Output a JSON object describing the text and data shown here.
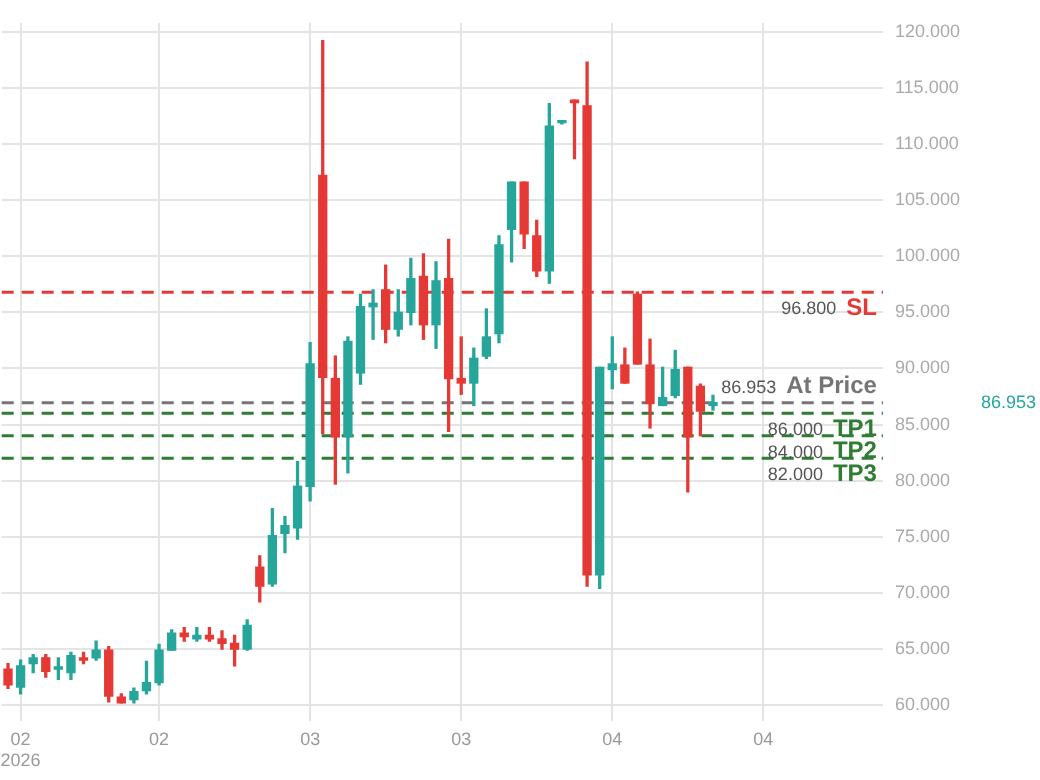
{
  "chart_data": {
    "type": "candlestick",
    "categories": [
      null,
      "02\n2026",
      null,
      null,
      null,
      null,
      null,
      null,
      null,
      null,
      null,
      null,
      "02",
      null,
      null,
      null,
      null,
      null,
      null,
      null,
      null,
      null,
      null,
      null,
      "03",
      null,
      null,
      null,
      null,
      null,
      null,
      null,
      null,
      null,
      null,
      null,
      "03",
      null,
      null,
      null,
      null,
      null,
      null,
      null,
      null,
      null,
      null,
      null,
      "04",
      null,
      null,
      null,
      null,
      null,
      null,
      null,
      null,
      null,
      null,
      null,
      "04",
      null,
      null,
      null,
      null,
      null,
      null,
      null,
      null,
      null
    ],
    "ohlc": [
      [
        63.2,
        63.7,
        61.5,
        61.8
      ],
      [
        61.6,
        64.0,
        61.0,
        63.5
      ],
      [
        63.7,
        64.5,
        62.9,
        64.2
      ],
      [
        64.2,
        64.5,
        62.5,
        63.0
      ],
      [
        63.2,
        64.2,
        62.3,
        63.4
      ],
      [
        62.9,
        64.7,
        62.3,
        64.4
      ],
      [
        64.2,
        64.7,
        63.7,
        64.0
      ],
      [
        64.2,
        65.7,
        64.0,
        64.9
      ],
      [
        64.9,
        65.2,
        60.3,
        60.8
      ],
      [
        60.7,
        61.0,
        60.2,
        60.2
      ],
      [
        60.5,
        61.5,
        60.2,
        61.2
      ],
      [
        61.3,
        63.9,
        61.0,
        62.0
      ],
      [
        62.0,
        65.4,
        61.8,
        64.9
      ],
      [
        64.9,
        66.7,
        64.9,
        66.4
      ],
      [
        66.4,
        66.9,
        65.7,
        66.1
      ],
      [
        65.9,
        66.9,
        65.7,
        66.2
      ],
      [
        66.2,
        66.9,
        65.7,
        65.9
      ],
      [
        65.9,
        66.6,
        65.0,
        65.5
      ],
      [
        65.5,
        66.2,
        63.5,
        65.0
      ],
      [
        65.0,
        67.6,
        64.9,
        67.1
      ],
      [
        72.3,
        73.3,
        69.2,
        70.6
      ],
      [
        70.8,
        77.5,
        70.6,
        75.1
      ],
      [
        75.3,
        76.8,
        73.6,
        76.0
      ],
      [
        75.8,
        81.7,
        74.8,
        79.5
      ],
      [
        79.5,
        92.3,
        78.2,
        90.4
      ],
      [
        107.2,
        119.2,
        84.2,
        89.2
      ],
      [
        89.1,
        91.1,
        79.7,
        83.9
      ],
      [
        83.9,
        92.8,
        80.7,
        92.4
      ],
      [
        89.6,
        96.6,
        88.6,
        95.5
      ],
      [
        95.5,
        97.0,
        92.6,
        95.8
      ],
      [
        97.0,
        99.2,
        92.3,
        93.5
      ],
      [
        93.5,
        97.0,
        92.9,
        95.0
      ],
      [
        95.0,
        99.8,
        93.9,
        98.0
      ],
      [
        98.2,
        100.2,
        92.6,
        93.9
      ],
      [
        93.9,
        99.5,
        91.8,
        97.8
      ],
      [
        98.0,
        101.5,
        84.4,
        89.1
      ],
      [
        89.1,
        92.8,
        87.7,
        88.7
      ],
      [
        88.7,
        91.8,
        86.7,
        90.9
      ],
      [
        91.1,
        95.3,
        90.9,
        92.8
      ],
      [
        93.1,
        101.8,
        92.3,
        101.0
      ],
      [
        102.4,
        106.6,
        99.5,
        106.6
      ],
      [
        106.6,
        106.6,
        100.7,
        102.0
      ],
      [
        101.8,
        103.2,
        98.2,
        98.7
      ],
      [
        98.7,
        113.6,
        97.6,
        111.6
      ],
      [
        111.9,
        112.0,
        111.8,
        111.9
      ],
      [
        113.9,
        113.9,
        108.7,
        113.7
      ],
      [
        113.4,
        117.3,
        70.6,
        71.6
      ],
      [
        71.6,
        90.1,
        70.4,
        90.1
      ],
      [
        89.9,
        92.8,
        88.2,
        90.4
      ],
      [
        90.3,
        91.8,
        88.7,
        88.7
      ],
      [
        96.6,
        96.8,
        90.4,
        90.4
      ],
      [
        90.3,
        92.6,
        84.7,
        86.9
      ],
      [
        86.7,
        90.1,
        86.7,
        87.4
      ],
      [
        87.6,
        91.6,
        87.4,
        89.9
      ],
      [
        90.1,
        90.1,
        79.0,
        83.9
      ],
      [
        88.4,
        88.6,
        84.0,
        86.2
      ],
      [
        86.7,
        87.6,
        86.3,
        86.953
      ],
      null,
      null,
      null,
      null,
      null,
      null,
      null,
      null,
      null,
      null,
      null,
      null,
      null
    ],
    "ylim": [
      58.6,
      120.8
    ],
    "yticks": [
      {
        "value": 60,
        "label": "60.000"
      },
      {
        "value": 65,
        "label": "65.000"
      },
      {
        "value": 70,
        "label": "70.000"
      },
      {
        "value": 75,
        "label": "75.000"
      },
      {
        "value": 80,
        "label": "80.000"
      },
      {
        "value": 85,
        "label": "85.000"
      },
      {
        "value": 90,
        "label": "90.000"
      },
      {
        "value": 95,
        "label": "95.000"
      },
      {
        "value": 100,
        "label": "100.000"
      },
      {
        "value": 105,
        "label": "105.000"
      },
      {
        "value": 110,
        "label": "110.000"
      },
      {
        "value": 115,
        "label": "115.000"
      },
      {
        "value": 120,
        "label": "120.000"
      }
    ],
    "ref_lines": [
      {
        "axis": "y",
        "value": 96.8,
        "label": "SL",
        "color": "#e53935",
        "line_style": "dashed"
      },
      {
        "axis": "y",
        "value": 86.953,
        "label": "At Price",
        "color": "#757575",
        "line_style": "dashed"
      },
      {
        "axis": "y",
        "value": 86,
        "label": "TP1",
        "color": "#2e7d32",
        "line_style": "dashed"
      },
      {
        "axis": "y",
        "value": 84,
        "label": "TP2",
        "color": "#2e7d32",
        "line_style": "dashed"
      },
      {
        "axis": "y",
        "value": 82,
        "label": "TP3",
        "color": "#2e7d32",
        "line_style": "dashed"
      }
    ],
    "annotations": [
      "96.800",
      "86.953",
      "86.000",
      "84.000",
      "82.000",
      "86.953"
    ],
    "grid": true,
    "legend": false
  }
}
